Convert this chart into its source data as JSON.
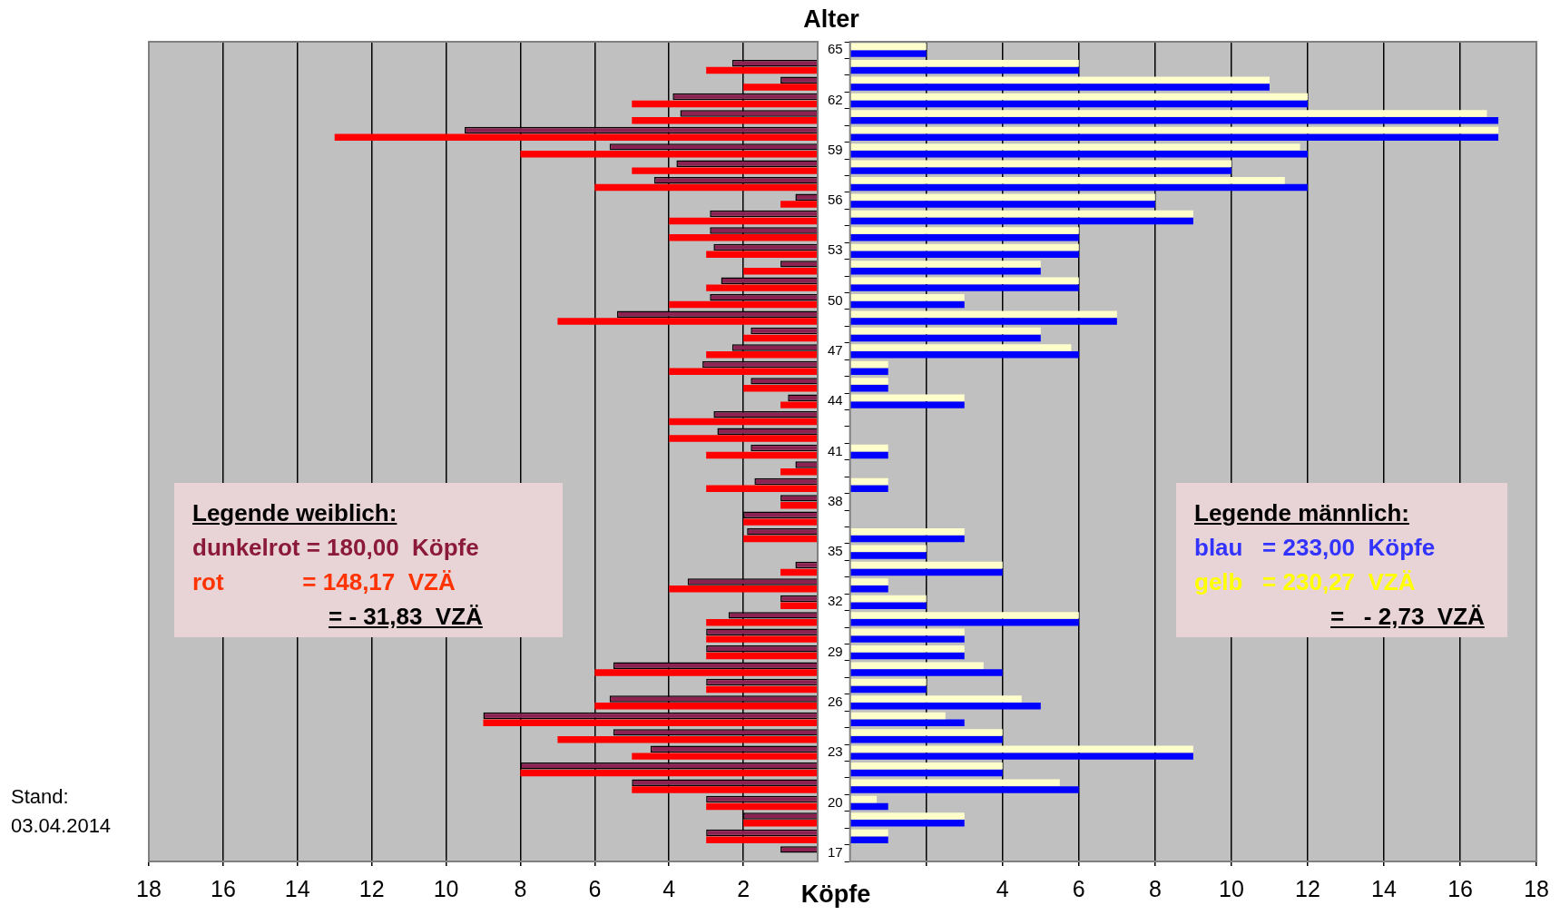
{
  "chart_data": [
    {
      "type": "bar",
      "orientation": "horizontal",
      "xlabel": "Köpfe",
      "categories": [
        "65",
        null,
        null,
        "62",
        null,
        null,
        "59",
        null,
        null,
        "56",
        null,
        null,
        "53",
        null,
        null,
        "50",
        null,
        null,
        "47",
        null,
        null,
        "44",
        null,
        null,
        "41",
        null,
        null,
        "38",
        null,
        null,
        "35",
        null,
        null,
        "32",
        null,
        null,
        "29",
        null,
        null,
        "26",
        null,
        null,
        "23",
        null,
        null,
        "20",
        null,
        null,
        "17"
      ],
      "series": [
        {
          "color": "#8b2252",
          "values": [
            null,
            2.3,
            1,
            3.9,
            3.7,
            9.5,
            5.6,
            3.8,
            4.4,
            0.6,
            2.9,
            2.9,
            2.8,
            1,
            2.6,
            2.9,
            5.4,
            1.8,
            2.3,
            3.1,
            1.8,
            0.8,
            2.8,
            2.7,
            1.8,
            0.6,
            1.7,
            1,
            2,
            1.9,
            null,
            0.6,
            3.5,
            1,
            2.4,
            3,
            3,
            5.5,
            3,
            5.6,
            9,
            5.5,
            4.5,
            8,
            5,
            3,
            2,
            3,
            1
          ]
        },
        {
          "color": "#ff0000",
          "values": [
            null,
            3,
            2,
            5,
            5,
            13,
            8,
            5,
            6,
            1,
            4,
            4,
            3,
            2,
            3,
            4,
            7,
            2,
            3,
            4,
            2,
            1,
            4,
            4,
            3,
            1,
            3,
            1,
            2,
            2,
            null,
            1,
            4,
            1,
            3,
            3,
            3,
            6,
            3,
            6,
            9,
            7,
            5,
            8,
            5,
            3,
            2,
            3,
            null
          ]
        }
      ],
      "xlim": [
        18,
        0
      ],
      "xticks": [
        18,
        16,
        14,
        12,
        10,
        8,
        6,
        4,
        2
      ],
      "grid": "x",
      "legend": false,
      "tick_labels": "x",
      "annotations": [
        "Legende weiblich:",
        "dunkelrot = 180,00  Köpfe",
        "rot            = 148,17  VZÄ",
        "= - 31,83  VZÄ",
        "Stand: 03.04.2014"
      ]
    },
    {
      "type": "bar",
      "orientation": "horizontal",
      "ylabel": "Alter",
      "categories": [
        "65",
        null,
        null,
        "62",
        null,
        null,
        "59",
        null,
        null,
        "56",
        null,
        null,
        "53",
        null,
        null,
        "50",
        null,
        null,
        "47",
        null,
        null,
        "44",
        null,
        null,
        "41",
        null,
        null,
        "38",
        null,
        null,
        "35",
        null,
        null,
        "32",
        null,
        null,
        "29",
        null,
        null,
        "26",
        null,
        null,
        "23",
        null,
        null,
        "20",
        null,
        null,
        "17"
      ],
      "series": [
        {
          "color": "#ffffcc",
          "values": [
            2,
            6,
            11,
            12,
            16.7,
            17,
            11.8,
            10,
            11.4,
            8,
            9,
            6,
            6,
            5,
            6,
            3,
            7,
            5,
            5.8,
            1,
            1,
            3,
            null,
            null,
            1,
            null,
            1,
            null,
            null,
            3,
            2,
            4,
            1,
            2,
            6,
            3,
            3,
            3.5,
            2,
            4.5,
            2.5,
            4,
            9,
            4,
            5.5,
            0.7,
            3,
            1,
            null
          ]
        },
        {
          "color": "#0000ff",
          "values": [
            2,
            6,
            11,
            12,
            17,
            17,
            12,
            10,
            12,
            8,
            9,
            6,
            6,
            5,
            6,
            3,
            7,
            5,
            6,
            1,
            1,
            3,
            null,
            null,
            1,
            null,
            1,
            null,
            null,
            3,
            2,
            4,
            1,
            2,
            6,
            3,
            3,
            4,
            2,
            5,
            3,
            4,
            9,
            4,
            6,
            1,
            3,
            1,
            null
          ]
        }
      ],
      "xlim": [
        0,
        18
      ],
      "xticks": [
        {
          "value": 2,
          "label": null
        },
        4,
        6,
        8,
        10,
        12,
        14,
        16,
        18
      ],
      "grid": "x",
      "legend": false,
      "annotations": [
        "Legende männlich:",
        "blau   = 233,00  Köpfe",
        "gelb   = 230,27  VZÄ",
        "=   - 2,73  VZÄ"
      ]
    }
  ]
}
